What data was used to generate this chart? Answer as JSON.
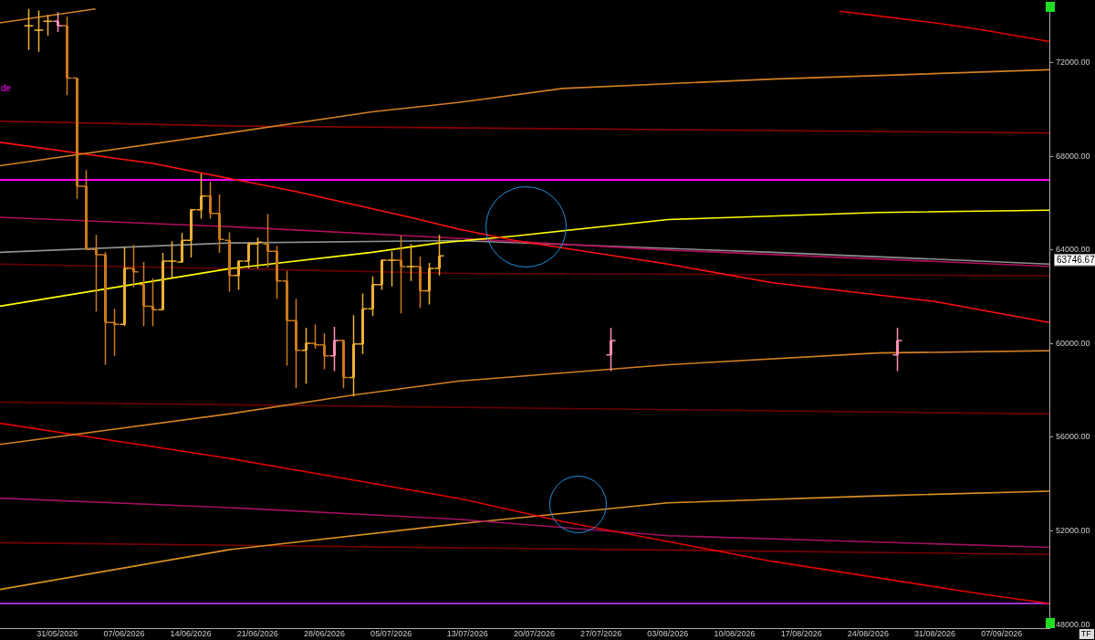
{
  "chart_data": {
    "type": "candlestick",
    "x": [
      "2026-05-28",
      "2026-05-29",
      "2026-05-30",
      "2026-05-31",
      "2026-06-01",
      "2026-06-02",
      "2026-06-03",
      "2026-06-04",
      "2026-06-05",
      "2026-06-06",
      "2026-06-07",
      "2026-06-08",
      "2026-06-09",
      "2026-06-10",
      "2026-06-11",
      "2026-06-12",
      "2026-06-13",
      "2026-06-14",
      "2026-06-15",
      "2026-06-16",
      "2026-06-17",
      "2026-06-18",
      "2026-06-19",
      "2026-06-20",
      "2026-06-21",
      "2026-06-22",
      "2026-06-23",
      "2026-06-24",
      "2026-06-25",
      "2026-06-26",
      "2026-06-27",
      "2026-06-28",
      "2026-06-29",
      "2026-06-30",
      "2026-07-01",
      "2026-07-02",
      "2026-07-03",
      "2026-07-04",
      "2026-07-05",
      "2026-07-06",
      "2026-07-07",
      "2026-07-08",
      "2026-07-09",
      "2026-07-10",
      "2026-07-28",
      "2026-08-27"
    ],
    "ohlc": [
      [
        73579,
        74300,
        72539,
        73579
      ],
      [
        73387,
        74234,
        72462,
        73387
      ],
      [
        73772,
        74042,
        73156,
        73772
      ],
      [
        73772,
        74157,
        73310,
        73579
      ],
      [
        73579,
        73965,
        70613,
        71345
      ],
      [
        71345,
        71345,
        66183,
        66723
      ],
      [
        66723,
        67416,
        64026,
        64026
      ],
      [
        64026,
        64643,
        61368,
        63795
      ],
      [
        63795,
        63911,
        59096,
        60906
      ],
      [
        60906,
        61484,
        59481,
        60829
      ],
      [
        60829,
        64142,
        60752,
        63217
      ],
      [
        63217,
        64219,
        62409,
        63063
      ],
      [
        62524,
        63487,
        60752,
        61600
      ],
      [
        61600,
        62794,
        60752,
        61446
      ],
      [
        61446,
        63872,
        61446,
        63526
      ],
      [
        63526,
        64373,
        62794,
        63526
      ],
      [
        63487,
        64720,
        63449,
        64412
      ],
      [
        64412,
        65760,
        63680,
        65721
      ],
      [
        65721,
        67262,
        65336,
        66299
      ],
      [
        66299,
        66915,
        65336,
        65567
      ],
      [
        65567,
        66376,
        63872,
        64450
      ],
      [
        64412,
        64758,
        62216,
        62909
      ],
      [
        62909,
        63564,
        62293,
        63526
      ],
      [
        63526,
        64335,
        63217,
        64257
      ],
      [
        64257,
        64527,
        63217,
        64335
      ],
      [
        64257,
        65529,
        63256,
        63949
      ],
      [
        63949,
        64180,
        61908,
        62678
      ],
      [
        62678,
        63102,
        59057,
        60983
      ],
      [
        60983,
        61908,
        58094,
        59712
      ],
      [
        59712,
        60675,
        58287,
        60020
      ],
      [
        60020,
        60829,
        59789,
        59943
      ],
      [
        59943,
        60444,
        58903,
        59481
      ],
      [
        59481,
        60714,
        58826,
        60136
      ],
      [
        60136,
        60174,
        58094,
        58557
      ],
      [
        58557,
        61214,
        57748,
        59982
      ],
      [
        59982,
        62139,
        59558,
        61484
      ],
      [
        61484,
        62871,
        61176,
        62524
      ],
      [
        62524,
        63600,
        62293,
        63564
      ],
      [
        63564,
        63949,
        62447,
        63564
      ],
      [
        63564,
        64604,
        61291,
        63294
      ],
      [
        63294,
        64257,
        62678,
        63294
      ],
      [
        63294,
        63718,
        61523,
        62254
      ],
      [
        62254,
        63449,
        61677,
        63217
      ],
      [
        63217,
        64643,
        62909,
        63746.67
      ],
      [
        59520,
        60675,
        58826,
        60136
      ],
      [
        59520,
        60675,
        58826,
        60136
      ]
    ],
    "colors": [
      "#f0b030",
      "#f0b030",
      "#f0b030",
      "#ff8fb5",
      "#cc7a1a",
      "#cc7a1a",
      "#cc7a1a",
      "#cc7a1a",
      "#cc7a1a",
      "#cc7a1a",
      "#f0b030",
      "#cc7a1a",
      "#cc7a1a",
      "#cc7a1a",
      "#f0b030",
      "#f0b030",
      "#f0b030",
      "#f0b030",
      "#f0b030",
      "#cc7a1a",
      "#cc7a1a",
      "#cc7a1a",
      "#f0b030",
      "#f0b030",
      "#f0b030",
      "#cc7a1a",
      "#cc7a1a",
      "#cc7a1a",
      "#cc7a1a",
      "#f0b030",
      "#cc7a1a",
      "#cc7a1a",
      "#ff8fb5",
      "#cc7a1a",
      "#f0b030",
      "#f0b030",
      "#f0b030",
      "#f0b030",
      "#f0b030",
      "#cc7a1a",
      "#f0b030",
      "#cc7a1a",
      "#f0b030",
      "#f0b030",
      "#ff8fb5",
      "#ff8fb5"
    ],
    "series": [
      {
        "type": "line",
        "color": "#e00000",
        "x": [
          "2026-08-21",
          "2026-08-25",
          "2026-08-31",
          "2026-09-05",
          "2026-09-12"
        ],
        "values": [
          74200,
          74000,
          73700,
          73400,
          72900
        ]
      },
      {
        "type": "line",
        "color": "#d08020",
        "x": [
          "2026-05-25",
          "2026-06-18",
          "2026-07-03",
          "2026-07-12",
          "2026-07-23",
          "2026-08-14",
          "2026-09-12"
        ],
        "values": [
          67600,
          69000,
          69900,
          70300,
          70900,
          71300,
          71700
        ]
      },
      {
        "type": "line",
        "color": "#d08020",
        "x": [
          "2026-05-25",
          "2026-06-04"
        ],
        "values": [
          73700,
          74300
        ]
      },
      {
        "type": "line",
        "color": "#8b0000",
        "x": [
          "2026-05-25",
          "2026-06-18",
          "2026-09-12"
        ],
        "values": [
          69500,
          69300,
          69000
        ]
      },
      {
        "type": "line",
        "color": "#ff1010",
        "x": [
          "2026-05-25",
          "2026-06-10",
          "2026-06-25",
          "2026-07-07",
          "2026-07-12",
          "2026-07-18",
          "2026-08-03",
          "2026-08-14",
          "2026-08-31",
          "2026-09-12"
        ],
        "values": [
          68600,
          67700,
          66500,
          65400,
          64900,
          64400,
          63400,
          62600,
          61800,
          60900
        ]
      },
      {
        "type": "line",
        "color": "#ffff00",
        "x": [
          "2026-05-25",
          "2026-06-18",
          "2026-07-03",
          "2026-07-10",
          "2026-07-18",
          "2026-08-03",
          "2026-08-25",
          "2026-09-12"
        ],
        "values": [
          61600,
          63200,
          63900,
          64300,
          64600,
          65300,
          65600,
          65700
        ]
      },
      {
        "type": "line",
        "color": "#b0105a",
        "x": [
          "2026-05-25",
          "2026-06-18",
          "2026-07-12",
          "2026-08-03",
          "2026-09-12"
        ],
        "values": [
          65400,
          65000,
          64500,
          64000,
          63300
        ]
      },
      {
        "type": "line",
        "color": "#8a9090",
        "x": [
          "2026-05-25",
          "2026-06-18",
          "2026-07-12",
          "2026-08-14",
          "2026-09-12"
        ],
        "values": [
          63900,
          64300,
          64400,
          63900,
          63400
        ]
      },
      {
        "type": "line",
        "color": "#6a0000",
        "x": [
          "2026-05-25",
          "2026-07-12",
          "2026-09-12"
        ],
        "values": [
          63400,
          63000,
          62900
        ]
      },
      {
        "type": "line",
        "color": "#d08020",
        "x": [
          "2026-05-25",
          "2026-06-18",
          "2026-07-01",
          "2026-07-12",
          "2026-08-03",
          "2026-08-25",
          "2026-09-12"
        ],
        "values": [
          55700,
          57000,
          57800,
          58400,
          59100,
          59600,
          59700
        ]
      },
      {
        "type": "line",
        "color": "#6a0000",
        "x": [
          "2026-05-25",
          "2026-09-12"
        ],
        "values": [
          57500,
          57000
        ]
      },
      {
        "type": "line",
        "color": "#e00000",
        "x": [
          "2026-05-25",
          "2026-06-18",
          "2026-07-12",
          "2026-07-23",
          "2026-08-14",
          "2026-09-05",
          "2026-09-12"
        ],
        "values": [
          56600,
          55100,
          53400,
          52400,
          50700,
          49300,
          48900
        ]
      },
      {
        "type": "line",
        "color": "#a01060",
        "x": [
          "2026-05-25",
          "2026-06-18",
          "2026-07-12",
          "2026-08-03",
          "2026-09-12"
        ],
        "values": [
          53400,
          53000,
          52500,
          51800,
          51300
        ]
      },
      {
        "type": "line",
        "color": "#d89020",
        "x": [
          "2026-05-25",
          "2026-06-18",
          "2026-07-12",
          "2026-08-03",
          "2026-08-25",
          "2026-09-12"
        ],
        "values": [
          49500,
          51200,
          52300,
          53200,
          53500,
          53700
        ]
      },
      {
        "type": "line",
        "color": "#7a0000",
        "x": [
          "2026-05-25",
          "2026-09-12"
        ],
        "values": [
          51500,
          51000
        ]
      }
    ],
    "ref_lines": [
      {
        "axis": "y",
        "value": 67000,
        "color": "#ff00ff"
      },
      {
        "axis": "y",
        "value": 48900,
        "color": "#9b30c0"
      }
    ],
    "marker": "none",
    "xlim": [
      "2026-05-25",
      "2026-09-12"
    ],
    "ylim": [
      47850,
      74350
    ],
    "xticks": [
      {
        "value": "2026-05-31",
        "label": "31/05/2026"
      },
      {
        "value": "2026-06-07",
        "label": "07/06/2026"
      },
      {
        "value": "2026-06-14",
        "label": "14/06/2026"
      },
      {
        "value": "2026-06-21",
        "label": "21/06/2026"
      },
      {
        "value": "2026-06-28",
        "label": "28/06/2026"
      },
      {
        "value": "2026-07-05",
        "label": "05/07/2026"
      },
      {
        "value": "2026-07-13",
        "label": "13/07/2026"
      },
      {
        "value": "2026-07-20",
        "label": "20/07/2026"
      },
      {
        "value": "2026-07-27",
        "label": "27/07/2026"
      },
      {
        "value": "2026-08-03",
        "label": "03/08/2026"
      },
      {
        "value": "2026-08-10",
        "label": "10/08/2026"
      },
      {
        "value": "2026-08-17",
        "label": "17/08/2026"
      },
      {
        "value": "2026-08-24",
        "label": "24/08/2026"
      },
      {
        "value": "2026-08-31",
        "label": "31/08/2026"
      },
      {
        "value": "2026-09-07",
        "label": "07/09/2026"
      }
    ],
    "yticks": [
      {
        "value": 48000,
        "label": "48000.00"
      },
      {
        "value": 52000,
        "label": "52000.00"
      },
      {
        "value": 56000,
        "label": "56000.00"
      },
      {
        "value": 60000,
        "label": "60000.00"
      },
      {
        "value": 64000,
        "label": "64000.00"
      },
      {
        "value": 68000,
        "label": "68000.00"
      },
      {
        "value": 72000,
        "label": "72000.00"
      }
    ],
    "annotations": [
      "de",
      "TF",
      "63746.67"
    ],
    "legend": false
  }
}
